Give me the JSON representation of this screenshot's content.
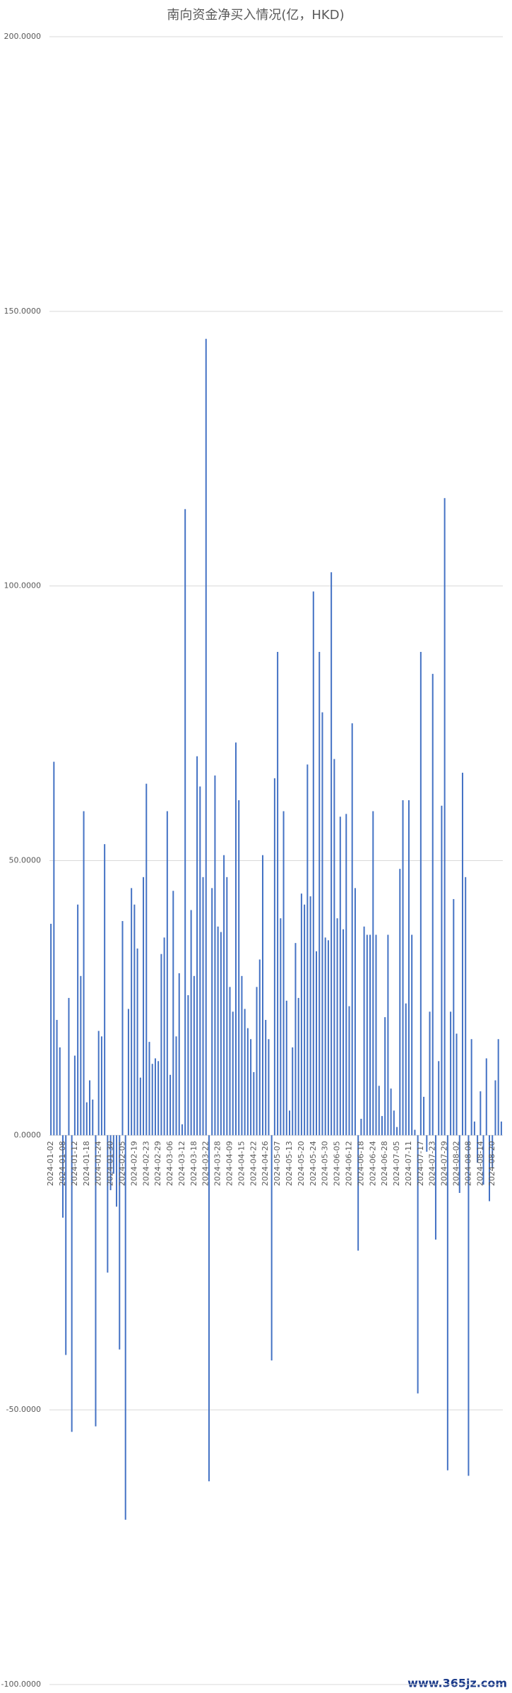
{
  "chart_data": {
    "type": "bar",
    "title": "南向资金净买入情况(亿，HKD)",
    "categories": [
      "2024-01-02",
      null,
      null,
      null,
      "2024-01-08",
      null,
      null,
      null,
      "2024-01-12",
      null,
      null,
      null,
      "2024-01-18",
      null,
      null,
      null,
      "2024-01-24",
      null,
      null,
      null,
      "2024-01-30",
      null,
      null,
      null,
      "2024-02-05",
      null,
      null,
      null,
      "2024-02-19",
      null,
      null,
      null,
      "2024-02-23",
      null,
      null,
      null,
      "2024-02-29",
      null,
      null,
      null,
      "2024-03-06",
      null,
      null,
      null,
      "2024-03-12",
      null,
      null,
      null,
      "2024-03-18",
      null,
      null,
      null,
      "2024-03-22",
      null,
      null,
      null,
      "2024-03-28",
      null,
      null,
      null,
      "2024-04-09",
      null,
      null,
      null,
      "2024-04-15",
      null,
      null,
      null,
      "2024-04-22",
      null,
      null,
      null,
      "2024-04-26",
      null,
      null,
      null,
      "2024-05-07",
      null,
      null,
      null,
      "2024-05-13",
      null,
      null,
      null,
      "2024-05-20",
      null,
      null,
      null,
      "2024-05-24",
      null,
      null,
      null,
      "2024-05-30",
      null,
      null,
      null,
      "2024-06-05",
      null,
      null,
      null,
      "2024-06-12",
      null,
      null,
      null,
      "2024-06-18",
      null,
      null,
      null,
      "2024-06-24",
      null,
      null,
      null,
      "2024-06-28",
      null,
      null,
      null,
      "2024-07-05",
      null,
      null,
      null,
      "2024-07-11",
      null,
      null,
      null,
      "2024-07-17",
      null,
      null,
      null,
      "2024-07-23",
      null,
      null,
      null,
      "2024-07-29",
      null,
      null,
      null,
      "2024-08-02",
      null,
      null,
      null,
      "2024-08-08",
      null,
      null,
      null,
      "2024-08-14",
      null,
      null,
      null,
      "2024-08-20",
      null,
      null,
      null
    ],
    "values": [
      38.5,
      68,
      21,
      16,
      -15,
      -40,
      25,
      -54,
      14.5,
      42,
      29,
      59,
      6,
      10,
      6.5,
      -53,
      19,
      18,
      53,
      -25,
      -10,
      -7,
      -13,
      -39,
      39,
      -70,
      23,
      45,
      42,
      34,
      10.5,
      47,
      64,
      17,
      13,
      14,
      13.5,
      33,
      36,
      59,
      11,
      44.5,
      18,
      29.5,
      2,
      114,
      25.5,
      41,
      29,
      69,
      63.5,
      47,
      145,
      -63,
      45,
      65.5,
      38,
      37,
      51,
      47,
      27,
      22.5,
      71.5,
      61,
      29,
      23,
      19.5,
      17.5,
      11.5,
      27,
      32,
      51,
      21,
      17.5,
      -41,
      65,
      88,
      39.5,
      59,
      24.5,
      4.5,
      16,
      35,
      25,
      44,
      42,
      67.5,
      43.5,
      99,
      33.5,
      88,
      77,
      36,
      35.5,
      102.5,
      68.5,
      39.5,
      58,
      37.5,
      58.5,
      23.5,
      75,
      45,
      -21,
      3,
      38,
      36.5,
      36.5,
      59,
      36.5,
      9,
      3.5,
      21.5,
      36.5,
      8.5,
      4.5,
      1.5,
      48.5,
      61,
      24,
      61,
      36.5,
      1,
      -47,
      88,
      7,
      -3,
      22.5,
      84,
      -19,
      13.5,
      60,
      116,
      -61,
      22.5,
      43,
      18.5,
      -10.5,
      66,
      47,
      -62,
      17.5,
      2.5,
      -5,
      8,
      -9,
      14,
      -12,
      -6,
      10,
      17.5,
      2.5
    ],
    "color": "#4472c4",
    "ylim": [
      -100,
      200
    ],
    "yticks": [
      {
        "value": -100,
        "label": "-100.0000"
      },
      {
        "value": -50,
        "label": "-50.0000"
      },
      {
        "value": 0,
        "label": "0.0000"
      },
      {
        "value": 50,
        "label": "50.0000"
      },
      {
        "value": 100,
        "label": "100.0000"
      },
      {
        "value": 150,
        "label": "150.0000"
      },
      {
        "value": 200,
        "label": "200.0000"
      }
    ],
    "grid": true
  },
  "watermark": "www.365jz.com"
}
